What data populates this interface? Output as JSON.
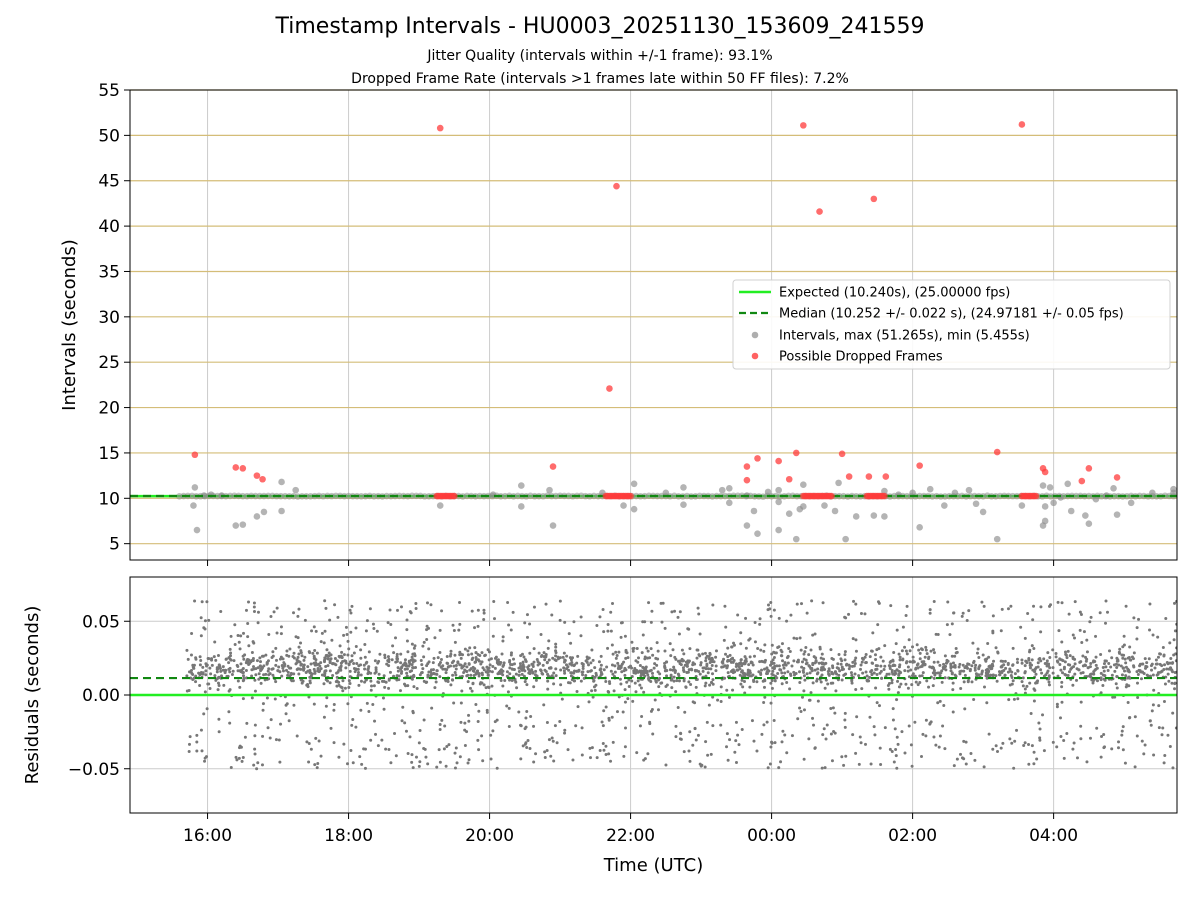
{
  "figure": {
    "title": "Timestamp Intervals - HU0003_20251130_153609_241559",
    "subtitle_1": "Jitter Quality (intervals within +/-1 frame): 93.1%",
    "subtitle_2": "Dropped Frame Rate (intervals >1 frames late within 50 FF files): 7.2%"
  },
  "colors": {
    "expected_line": "#22ee22",
    "median_line": "#118811",
    "intervals": "#8c8c8c",
    "dropped": "#ff3b3b",
    "hgrid_top": "#d4bd78",
    "grid": "#cccccc",
    "residual_points": "#777777"
  },
  "chart_data": [
    {
      "type": "scatter",
      "ylabel": "Intervals (seconds)",
      "xlabel": "",
      "xlim": [
        14.9,
        29.75
      ],
      "ylim": [
        3.2,
        55
      ],
      "yticks": [
        5,
        10,
        15,
        20,
        25,
        30,
        35,
        40,
        45,
        50,
        55
      ],
      "legend_position": "right",
      "legend": [
        {
          "kind": "line",
          "label": "Expected (10.240s), (25.00000 fps)"
        },
        {
          "kind": "dashed",
          "label": "Median (10.252 +/- 0.022 s), (24.97181 +/- 0.05 fps)"
        },
        {
          "kind": "gray-dot",
          "label": "Intervals, max (51.265s), min (5.455s)"
        },
        {
          "kind": "red-dot",
          "label": "Possible Dropped Frames"
        }
      ],
      "expected": 10.24,
      "median": 10.252,
      "time_range": [
        15.6,
        29.75
      ],
      "intervals_outliers": [
        [
          15.82,
          11.2
        ],
        [
          15.8,
          9.2
        ],
        [
          15.85,
          6.5
        ],
        [
          15.95,
          10.3
        ],
        [
          16.05,
          10.4
        ],
        [
          16.2,
          10.3
        ],
        [
          16.4,
          7.0
        ],
        [
          16.5,
          7.1
        ],
        [
          16.7,
          8.0
        ],
        [
          16.8,
          8.5
        ],
        [
          17.05,
          8.6
        ],
        [
          17.05,
          11.8
        ],
        [
          17.25,
          10.9
        ],
        [
          19.3,
          9.2
        ],
        [
          20.05,
          10.4
        ],
        [
          20.45,
          9.1
        ],
        [
          20.45,
          11.4
        ],
        [
          20.85,
          10.9
        ],
        [
          20.9,
          7.0
        ],
        [
          21.6,
          10.6
        ],
        [
          21.9,
          9.2
        ],
        [
          22.05,
          8.8
        ],
        [
          22.05,
          11.6
        ],
        [
          22.5,
          10.6
        ],
        [
          22.75,
          9.3
        ],
        [
          22.75,
          11.2
        ],
        [
          23.3,
          10.9
        ],
        [
          23.4,
          9.5
        ],
        [
          23.4,
          11.1
        ],
        [
          23.65,
          10.3
        ],
        [
          23.65,
          7.0
        ],
        [
          23.75,
          8.6
        ],
        [
          23.8,
          6.1
        ],
        [
          23.95,
          10.7
        ],
        [
          24.1,
          6.5
        ],
        [
          24.1,
          9.6
        ],
        [
          24.1,
          10.9
        ],
        [
          24.25,
          8.3
        ],
        [
          24.35,
          5.5
        ],
        [
          24.4,
          8.8
        ],
        [
          24.45,
          9.1
        ],
        [
          24.45,
          11.5
        ],
        [
          24.75,
          9.2
        ],
        [
          24.9,
          8.6
        ],
        [
          24.95,
          11.7
        ],
        [
          25.05,
          5.5
        ],
        [
          25.2,
          8.0
        ],
        [
          25.45,
          8.1
        ],
        [
          25.6,
          8.0
        ],
        [
          25.6,
          10.8
        ],
        [
          25.8,
          10.4
        ],
        [
          26.0,
          10.6
        ],
        [
          26.1,
          6.8
        ],
        [
          26.25,
          11.0
        ],
        [
          26.45,
          9.2
        ],
        [
          26.6,
          10.6
        ],
        [
          26.8,
          10.9
        ],
        [
          26.9,
          9.4
        ],
        [
          27.0,
          8.5
        ],
        [
          27.2,
          5.5
        ],
        [
          27.55,
          9.2
        ],
        [
          27.85,
          11.4
        ],
        [
          27.85,
          7.0
        ],
        [
          27.88,
          7.5
        ],
        [
          27.88,
          9.1
        ],
        [
          27.95,
          11.2
        ],
        [
          28.0,
          9.5
        ],
        [
          28.1,
          10.1
        ],
        [
          28.2,
          11.6
        ],
        [
          28.25,
          8.6
        ],
        [
          28.45,
          8.1
        ],
        [
          28.5,
          7.2
        ],
        [
          28.6,
          9.9
        ],
        [
          28.75,
          10.3
        ],
        [
          28.85,
          11.1
        ],
        [
          28.9,
          8.2
        ],
        [
          29.1,
          9.5
        ],
        [
          29.4,
          10.6
        ],
        [
          29.7,
          11.0
        ],
        [
          29.7,
          10.6
        ]
      ],
      "dropped_frames": [
        [
          15.82,
          14.8
        ],
        [
          16.4,
          13.4
        ],
        [
          16.5,
          13.3
        ],
        [
          16.7,
          12.5
        ],
        [
          16.78,
          12.1
        ],
        [
          19.3,
          50.8
        ],
        [
          20.9,
          13.5
        ],
        [
          21.7,
          22.1
        ],
        [
          21.8,
          44.4
        ],
        [
          23.65,
          13.5
        ],
        [
          23.65,
          12.0
        ],
        [
          23.8,
          14.4
        ],
        [
          24.1,
          14.1
        ],
        [
          24.25,
          12.1
        ],
        [
          24.35,
          15.0
        ],
        [
          24.45,
          51.1
        ],
        [
          24.68,
          41.6
        ],
        [
          25.0,
          14.9
        ],
        [
          25.1,
          12.4
        ],
        [
          25.38,
          12.4
        ],
        [
          25.45,
          43.0
        ],
        [
          25.62,
          12.4
        ],
        [
          26.1,
          13.6
        ],
        [
          27.2,
          15.1
        ],
        [
          27.55,
          51.2
        ],
        [
          27.85,
          13.3
        ],
        [
          27.88,
          12.9
        ],
        [
          28.4,
          11.9
        ],
        [
          28.5,
          13.3
        ],
        [
          28.9,
          12.3
        ]
      ],
      "dropped_clusters": [
        [
          19.25,
          19.5
        ],
        [
          21.65,
          22.0
        ],
        [
          24.45,
          24.85
        ],
        [
          25.35,
          25.6
        ],
        [
          27.55,
          27.75
        ]
      ]
    },
    {
      "type": "scatter",
      "ylabel": "Residuals (seconds)",
      "xlabel": "Time (UTC)",
      "xlim": [
        14.9,
        29.75
      ],
      "ylim": [
        -0.08,
        0.08
      ],
      "yticks": [
        0.05,
        0.0,
        -0.05
      ],
      "ytick_labels": [
        "0.05",
        "0.00",
        "−0.05"
      ],
      "xtick_values": [
        16,
        18,
        20,
        22,
        24,
        26,
        28
      ],
      "xtick_labels": [
        "16:00",
        "18:00",
        "20:00",
        "22:00",
        "00:00",
        "02:00",
        "04:00"
      ],
      "expected_residual": 0.0,
      "median_residual": 0.0115,
      "points_summary": {
        "count": 3000,
        "x_range": [
          15.7,
          29.75
        ],
        "typical_center": 0.018,
        "spread_range": [
          -0.05,
          0.07
        ]
      }
    }
  ]
}
